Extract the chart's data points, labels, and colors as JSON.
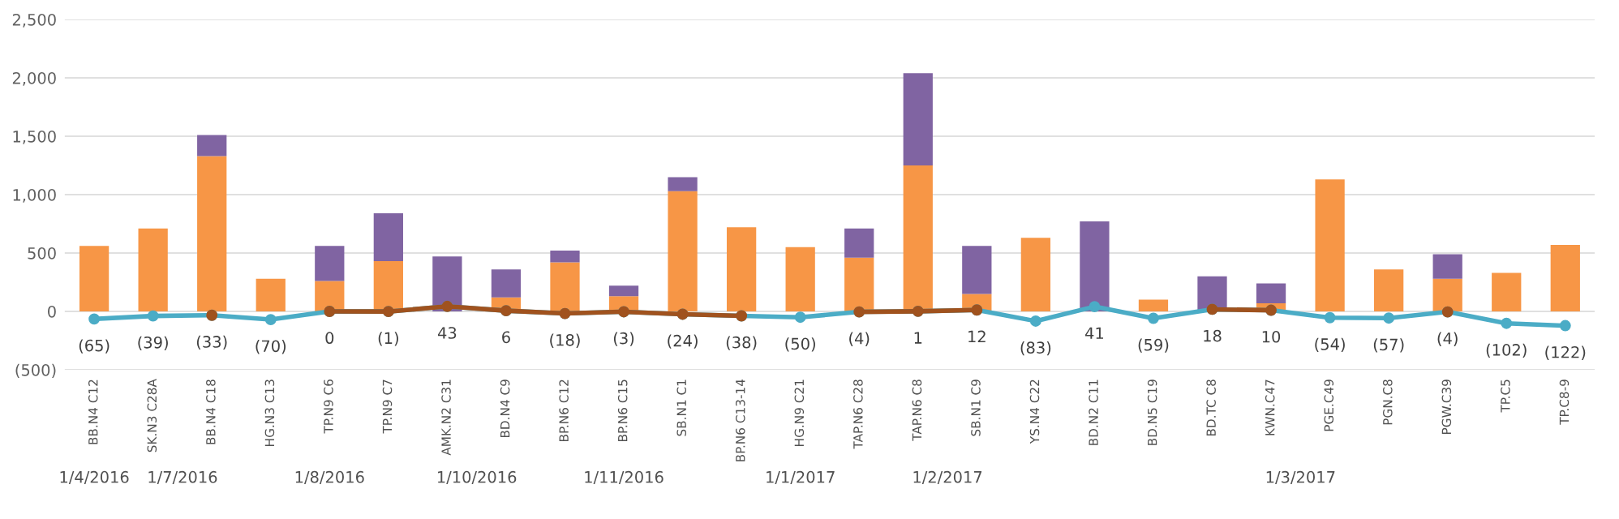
{
  "chart_data": {
    "type": "bar",
    "stacked": true,
    "categories": [
      "BB.N4 C12",
      "SK.N3 C28A",
      "BB.N4 C18",
      "HG.N3 C13",
      "TP.N9 C6",
      "TP.N9 C7",
      "AMK.N2 C31",
      "BD.N4 C9",
      "BP.N6 C12",
      "BP.N6 C15",
      "SB.N1 C1",
      "BP.N6 C13-14",
      "HG.N9 C21",
      "TAP.N6 C28",
      "TAP.N6 C8",
      "SB.N1 C9",
      "YS.N4 C22",
      "BD.N2 C11",
      "BD.N5 C19",
      "BD.TC C8",
      "KWN.C47",
      "PGE.C49",
      "PGN.C8",
      "PGW.C39",
      "TP.C5",
      "TP.C8-9"
    ],
    "series": [
      {
        "color": "#f79646",
        "values": [
          560,
          710,
          1330,
          280,
          260,
          430,
          0,
          120,
          420,
          130,
          1030,
          720,
          550,
          460,
          1250,
          150,
          630,
          0,
          100,
          null,
          70,
          1130,
          360,
          280,
          330,
          570
        ]
      },
      {
        "color": "#8064a2",
        "values": [
          0,
          0,
          180,
          0,
          300,
          410,
          470,
          240,
          100,
          90,
          120,
          0,
          0,
          250,
          790,
          410,
          0,
          770,
          0,
          300,
          170,
          0,
          0,
          210,
          0,
          0
        ]
      },
      {
        "type": "line",
        "color": "#4bacc6",
        "marker": "circle",
        "values": [
          -65,
          -39,
          -33,
          -70,
          0,
          -1,
          43,
          6,
          -18,
          -3,
          -24,
          -38,
          -50,
          -4,
          1,
          12,
          -83,
          41,
          -59,
          18,
          10,
          -54,
          -57,
          -4,
          -102,
          -122
        ],
        "value_labels": [
          "(65)",
          "(39)",
          "(33)",
          "(70)",
          "0",
          "(1)",
          "43",
          "6",
          "(18)",
          "(3)",
          "(24)",
          "(38)",
          "(50)",
          "(4)",
          "1",
          "12",
          "(83)",
          "41",
          "(59)",
          "18",
          "10",
          "(54)",
          "(57)",
          "(4)",
          "(102)",
          "(122)"
        ]
      },
      {
        "type": "line",
        "color": "#a0521e",
        "marker": "circle",
        "values": [
          null,
          null,
          -33,
          null,
          0,
          -1,
          43,
          6,
          -18,
          -3,
          -24,
          -38,
          null,
          -4,
          1,
          12,
          null,
          null,
          null,
          18,
          10,
          null,
          null,
          -4,
          null,
          null
        ]
      }
    ],
    "ylim": [
      -500,
      2500
    ],
    "yticks": [
      {
        "value": -500,
        "label": "(500)"
      },
      0,
      500,
      {
        "value": 1000,
        "label": "1,000"
      },
      {
        "value": 1500,
        "label": "1,500"
      },
      {
        "value": 2000,
        "label": "2,000"
      },
      {
        "value": 2500,
        "label": "2,500"
      }
    ],
    "grid": "y",
    "annotations": [
      "1/4/2016",
      "1/7/2016",
      "1/8/2016",
      "1/10/2016",
      "1/11/2016",
      "1/1/2017",
      "1/2/2017",
      "1/3/2017"
    ]
  }
}
